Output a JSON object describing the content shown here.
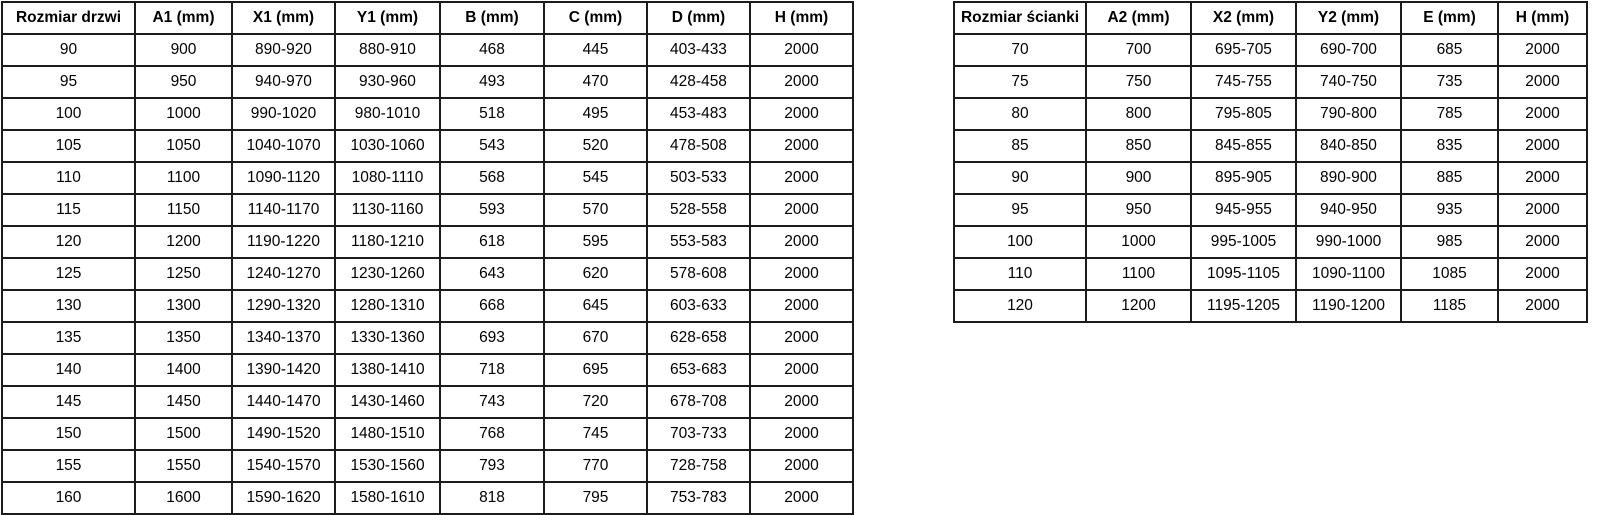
{
  "tables": [
    {
      "id": "door-table",
      "name": "door-sizes-table",
      "headers": [
        "Rozmiar drzwi",
        "A1 (mm)",
        "X1 (mm)",
        "Y1 (mm)",
        "B (mm)",
        "C (mm)",
        "D (mm)",
        "H (mm)"
      ],
      "rows": [
        [
          "90",
          "900",
          "890-920",
          "880-910",
          "468",
          "445",
          "403-433",
          "2000"
        ],
        [
          "95",
          "950",
          "940-970",
          "930-960",
          "493",
          "470",
          "428-458",
          "2000"
        ],
        [
          "100",
          "1000",
          "990-1020",
          "980-1010",
          "518",
          "495",
          "453-483",
          "2000"
        ],
        [
          "105",
          "1050",
          "1040-1070",
          "1030-1060",
          "543",
          "520",
          "478-508",
          "2000"
        ],
        [
          "110",
          "1100",
          "1090-1120",
          "1080-1110",
          "568",
          "545",
          "503-533",
          "2000"
        ],
        [
          "115",
          "1150",
          "1140-1170",
          "1130-1160",
          "593",
          "570",
          "528-558",
          "2000"
        ],
        [
          "120",
          "1200",
          "1190-1220",
          "1180-1210",
          "618",
          "595",
          "553-583",
          "2000"
        ],
        [
          "125",
          "1250",
          "1240-1270",
          "1230-1260",
          "643",
          "620",
          "578-608",
          "2000"
        ],
        [
          "130",
          "1300",
          "1290-1320",
          "1280-1310",
          "668",
          "645",
          "603-633",
          "2000"
        ],
        [
          "135",
          "1350",
          "1340-1370",
          "1330-1360",
          "693",
          "670",
          "628-658",
          "2000"
        ],
        [
          "140",
          "1400",
          "1390-1420",
          "1380-1410",
          "718",
          "695",
          "653-683",
          "2000"
        ],
        [
          "145",
          "1450",
          "1440-1470",
          "1430-1460",
          "743",
          "720",
          "678-708",
          "2000"
        ],
        [
          "150",
          "1500",
          "1490-1520",
          "1480-1510",
          "768",
          "745",
          "703-733",
          "2000"
        ],
        [
          "155",
          "1550",
          "1540-1570",
          "1530-1560",
          "793",
          "770",
          "728-758",
          "2000"
        ],
        [
          "160",
          "1600",
          "1590-1620",
          "1580-1610",
          "818",
          "795",
          "753-783",
          "2000"
        ]
      ]
    },
    {
      "id": "wall-table",
      "name": "wall-sizes-table",
      "headers": [
        "Rozmiar ścianki",
        "A2 (mm)",
        "X2 (mm)",
        "Y2 (mm)",
        "E (mm)",
        "H (mm)"
      ],
      "rows": [
        [
          "70",
          "700",
          "695-705",
          "690-700",
          "685",
          "2000"
        ],
        [
          "75",
          "750",
          "745-755",
          "740-750",
          "735",
          "2000"
        ],
        [
          "80",
          "800",
          "795-805",
          "790-800",
          "785",
          "2000"
        ],
        [
          "85",
          "850",
          "845-855",
          "840-850",
          "835",
          "2000"
        ],
        [
          "90",
          "900",
          "895-905",
          "890-900",
          "885",
          "2000"
        ],
        [
          "95",
          "950",
          "945-955",
          "940-950",
          "935",
          "2000"
        ],
        [
          "100",
          "1000",
          "995-1005",
          "990-1000",
          "985",
          "2000"
        ],
        [
          "110",
          "1100",
          "1095-1105",
          "1090-1100",
          "1085",
          "2000"
        ],
        [
          "120",
          "1200",
          "1195-1205",
          "1190-1200",
          "1185",
          "2000"
        ]
      ]
    }
  ],
  "colors": {
    "border": "#1c1c1c",
    "text": "#000000",
    "background": "#ffffff"
  }
}
